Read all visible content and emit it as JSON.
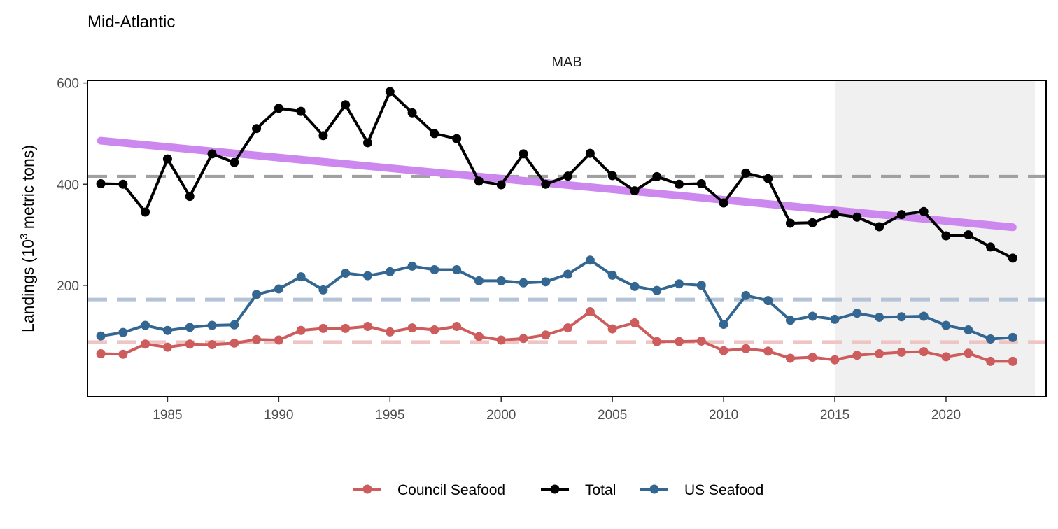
{
  "chart_data": {
    "type": "line",
    "title": "Mid-Atlantic",
    "facet_label": "MAB",
    "ylabel_main": "Landings (10",
    "ylabel_sup": "3",
    "ylabel_rest": " metric tons)",
    "xlabel": "",
    "xlim": [
      1981.4,
      2024.5
    ],
    "ylim": [
      -20,
      605
    ],
    "x_ticks": [
      1985,
      1990,
      1995,
      2000,
      2005,
      2010,
      2015,
      2020
    ],
    "y_ticks": [
      200,
      400,
      600
    ],
    "shaded_region": [
      2015,
      2024
    ],
    "x": [
      1982,
      1983,
      1984,
      1985,
      1986,
      1987,
      1988,
      1989,
      1990,
      1991,
      1992,
      1993,
      1994,
      1995,
      1996,
      1997,
      1998,
      1999,
      2000,
      2001,
      2002,
      2003,
      2004,
      2005,
      2006,
      2007,
      2008,
      2009,
      2010,
      2011,
      2012,
      2013,
      2014,
      2015,
      2016,
      2017,
      2018,
      2019,
      2020,
      2021,
      2022,
      2023
    ],
    "series": [
      {
        "name": "Total",
        "color": "#000000",
        "mean": 415,
        "mean_color": "#a0a0a0",
        "values": [
          401,
          400,
          345,
          450,
          376,
          460,
          443,
          510,
          550,
          544,
          496,
          557,
          482,
          583,
          541,
          500,
          490,
          406,
          399,
          460,
          400,
          416,
          461,
          417,
          387,
          415,
          400,
          401,
          363,
          422,
          411,
          323,
          324,
          341,
          335,
          316,
          340,
          346,
          298,
          300,
          276,
          254
        ]
      },
      {
        "name": "US Seafood",
        "color": "#336791",
        "mean": 172,
        "mean_color": "#b4c4d6",
        "values": [
          100,
          107,
          121,
          111,
          117,
          121,
          122,
          182,
          193,
          217,
          191,
          224,
          219,
          227,
          238,
          231,
          231,
          209,
          209,
          205,
          207,
          222,
          250,
          220,
          198,
          190,
          203,
          200,
          123,
          180,
          170,
          131,
          139,
          133,
          145,
          137,
          138,
          139,
          121,
          112,
          94,
          97
        ]
      },
      {
        "name": "Council Seafood",
        "color": "#cd5c5c",
        "mean": 88,
        "mean_color": "#eec4c4",
        "values": [
          65,
          64,
          84,
          78,
          84,
          83,
          86,
          93,
          92,
          111,
          115,
          115,
          119,
          108,
          116,
          112,
          119,
          99,
          92,
          95,
          102,
          116,
          148,
          114,
          126,
          89,
          89,
          90,
          71,
          75,
          70,
          56,
          58,
          53,
          62,
          65,
          68,
          69,
          59,
          66,
          50,
          50
        ]
      }
    ],
    "trend": {
      "color": "#cc88ee",
      "x": [
        1982,
        2023
      ],
      "values": [
        486,
        315
      ]
    },
    "legend_position": "bottom",
    "legend_order": [
      "Council Seafood",
      "Total",
      "US Seafood"
    ]
  }
}
